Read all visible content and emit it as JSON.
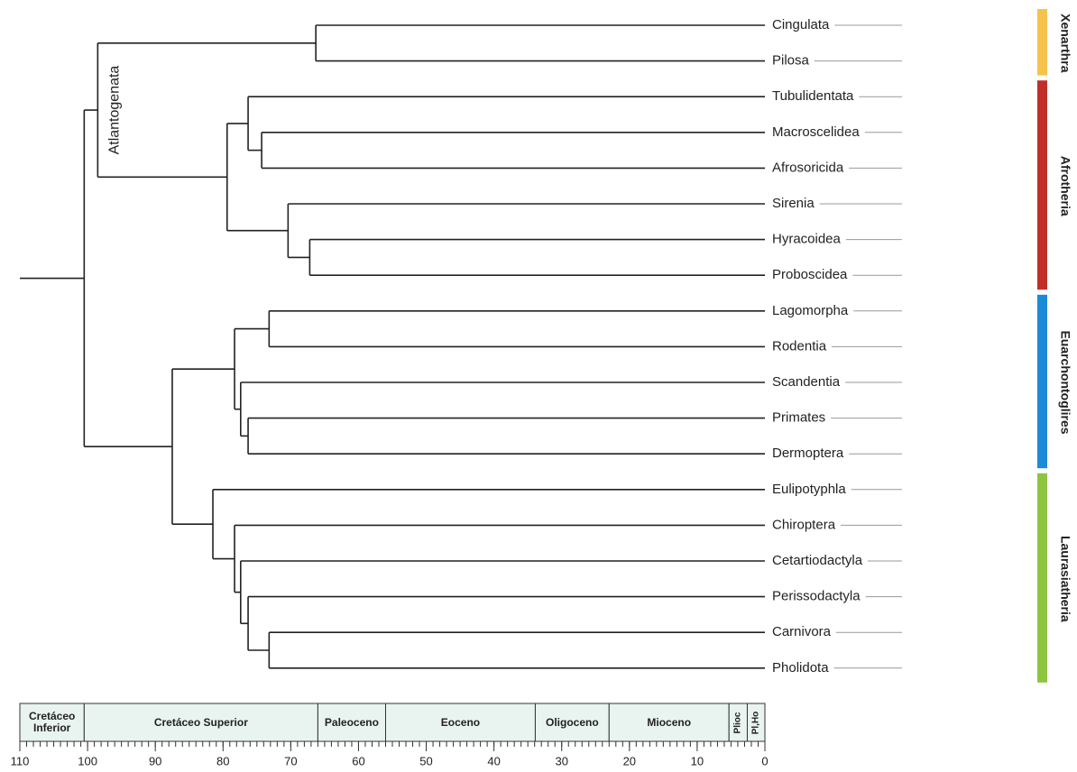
{
  "tree": {
    "age": 100.5,
    "children": [
      {
        "age": 98.5,
        "label": "Atlantogenata",
        "children": [
          {
            "age": 66.3,
            "group": "Xenarthra",
            "group_color": "#f5c24c",
            "children": [
              {
                "name": "Cingulata"
              },
              {
                "name": "Pilosa"
              }
            ]
          },
          {
            "age": 79.4,
            "group": "Afrotheria",
            "group_color": "#c0302b",
            "children": [
              {
                "age": 76.3,
                "children": [
                  {
                    "name": "Tubulidentata"
                  },
                  {
                    "age": 74.3,
                    "children": [
                      {
                        "name": "Macroscelidea"
                      },
                      {
                        "name": "Afrosoricida"
                      }
                    ]
                  }
                ]
              },
              {
                "age": 70.4,
                "children": [
                  {
                    "name": "Sirenia"
                  },
                  {
                    "age": 67.2,
                    "children": [
                      {
                        "name": "Hyracoidea"
                      },
                      {
                        "name": "Proboscidea"
                      }
                    ]
                  }
                ]
              }
            ]
          }
        ]
      },
      {
        "age": 87.5,
        "children": [
          {
            "age": 78.3,
            "group": "Euarchontoglires",
            "group_color": "#1c8ad6",
            "children": [
              {
                "age": 73.2,
                "children": [
                  {
                    "name": "Lagomorpha"
                  },
                  {
                    "name": "Rodentia"
                  }
                ]
              },
              {
                "age": 77.4,
                "children": [
                  {
                    "name": "Scandentia"
                  },
                  {
                    "age": 76.3,
                    "children": [
                      {
                        "name": "Primates"
                      },
                      {
                        "name": "Dermoptera"
                      }
                    ]
                  }
                ]
              }
            ]
          },
          {
            "age": 81.5,
            "group": "Laurasiatheria",
            "group_color": "#8cc63f",
            "children": [
              {
                "name": "Eulipotyphla"
              },
              {
                "age": 78.3,
                "children": [
                  {
                    "name": "Chiroptera"
                  },
                  {
                    "age": 77.4,
                    "children": [
                      {
                        "name": "Cetartiodactyla"
                      },
                      {
                        "age": 76.3,
                        "children": [
                          {
                            "name": "Perissodactyla"
                          },
                          {
                            "age": 73.2,
                            "children": [
                              {
                                "name": "Carnivora"
                              },
                              {
                                "name": "Pholidota"
                              }
                            ]
                          }
                        ]
                      }
                    ]
                  }
                ]
              }
            ]
          }
        ]
      }
    ]
  },
  "timescale": {
    "xlim": [
      110,
      0
    ],
    "ticks": [
      110,
      100,
      90,
      80,
      70,
      60,
      50,
      40,
      30,
      20,
      10,
      0
    ],
    "minor_step": 1,
    "periods": [
      {
        "label": "Cretáceo Inferior",
        "start": 110,
        "end": 100.5
      },
      {
        "label": "Cretáceo Superior",
        "start": 100.5,
        "end": 66
      },
      {
        "label": "Paleoceno",
        "start": 66,
        "end": 56
      },
      {
        "label": "Eoceno",
        "start": 56,
        "end": 33.9
      },
      {
        "label": "Oligoceno",
        "start": 33.9,
        "end": 23
      },
      {
        "label": "Mioceno",
        "start": 23,
        "end": 5.3
      },
      {
        "label": "Plioc",
        "start": 5.3,
        "end": 2.6,
        "vertical": true
      },
      {
        "label": "Pl,Ho",
        "start": 2.6,
        "end": 0,
        "vertical": true
      }
    ]
  }
}
